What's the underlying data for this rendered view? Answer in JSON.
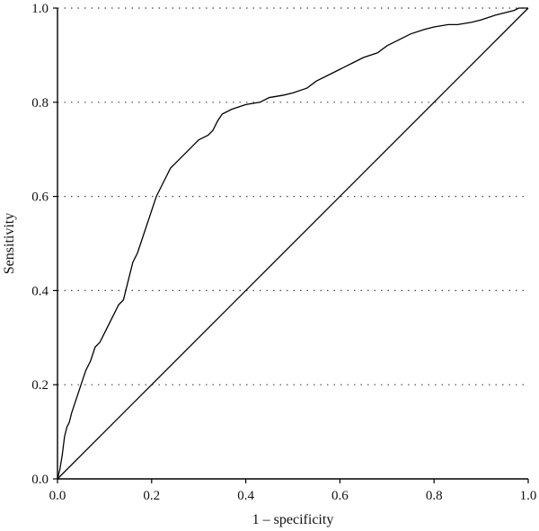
{
  "chart_data": {
    "type": "line",
    "title": "",
    "xlabel": "1 – specificity",
    "ylabel": "Sensitivity",
    "xlim": [
      0.0,
      1.0
    ],
    "ylim": [
      0.0,
      1.0
    ],
    "x_ticks": [
      "0.0",
      "0.2",
      "0.4",
      "0.6",
      "0.8",
      "1.0"
    ],
    "y_ticks": [
      "0.0",
      "0.2",
      "0.4",
      "0.6",
      "0.8",
      "1.0"
    ],
    "grid": "horizontal dotted",
    "legend": "none",
    "series": [
      {
        "x": [
          0.0,
          0.005,
          0.01,
          0.015,
          0.02,
          0.025,
          0.03,
          0.04,
          0.05,
          0.06,
          0.07,
          0.08,
          0.09,
          0.1,
          0.11,
          0.12,
          0.13,
          0.14,
          0.15,
          0.16,
          0.17,
          0.18,
          0.19,
          0.2,
          0.21,
          0.22,
          0.23,
          0.24,
          0.25,
          0.26,
          0.27,
          0.28,
          0.29,
          0.3,
          0.31,
          0.32,
          0.33,
          0.34,
          0.35,
          0.37,
          0.4,
          0.43,
          0.45,
          0.48,
          0.5,
          0.53,
          0.55,
          0.58,
          0.6,
          0.63,
          0.65,
          0.68,
          0.7,
          0.73,
          0.75,
          0.78,
          0.8,
          0.83,
          0.85,
          0.88,
          0.9,
          0.93,
          0.95,
          0.97,
          0.98,
          0.99,
          1.0
        ],
        "y": [
          0.0,
          0.02,
          0.05,
          0.09,
          0.11,
          0.12,
          0.14,
          0.17,
          0.2,
          0.23,
          0.25,
          0.28,
          0.29,
          0.31,
          0.33,
          0.35,
          0.37,
          0.38,
          0.42,
          0.46,
          0.48,
          0.51,
          0.54,
          0.57,
          0.6,
          0.62,
          0.64,
          0.66,
          0.67,
          0.68,
          0.69,
          0.7,
          0.71,
          0.72,
          0.725,
          0.73,
          0.74,
          0.76,
          0.775,
          0.785,
          0.795,
          0.8,
          0.81,
          0.815,
          0.82,
          0.83,
          0.845,
          0.86,
          0.87,
          0.885,
          0.895,
          0.905,
          0.92,
          0.935,
          0.945,
          0.955,
          0.96,
          0.965,
          0.965,
          0.97,
          0.975,
          0.985,
          0.99,
          0.995,
          1.0,
          1.0,
          1.0
        ]
      },
      {
        "x": [
          0.0,
          1.0
        ],
        "y": [
          0.0,
          1.0
        ]
      }
    ]
  }
}
